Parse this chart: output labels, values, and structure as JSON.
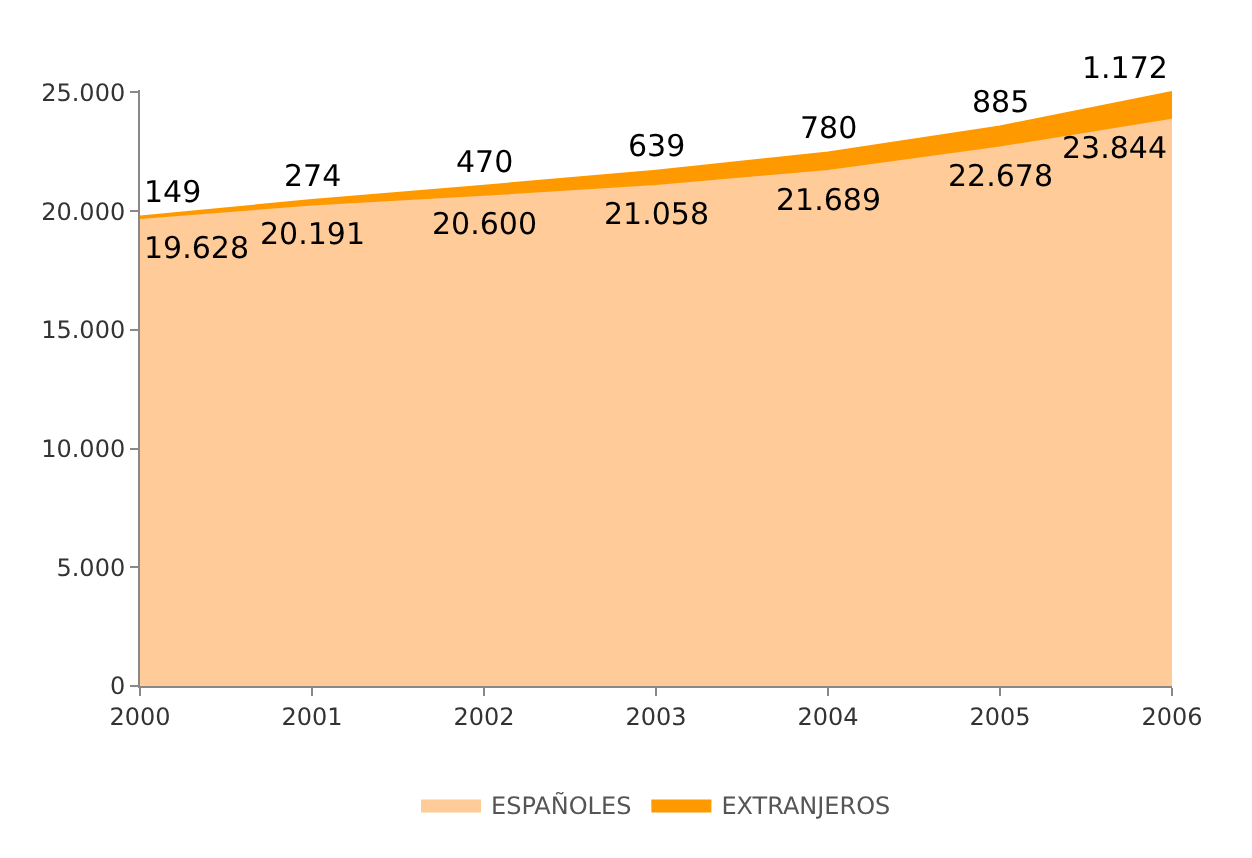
{
  "chart_data": {
    "type": "area",
    "stacked": true,
    "x": [
      2000,
      2001,
      2002,
      2003,
      2004,
      2005,
      2006
    ],
    "series": [
      {
        "name": "ESPAÑOLES",
        "color": "#ffcc99",
        "values": [
          19628,
          20191,
          20600,
          21058,
          21689,
          22678,
          23844
        ],
        "value_labels": [
          "19.628",
          "20.191",
          "20.600",
          "21.058",
          "21.689",
          "22.678",
          "23.844"
        ]
      },
      {
        "name": "EXTRANJEROS",
        "color": "#ff9900",
        "values": [
          149,
          274,
          470,
          639,
          780,
          885,
          1172
        ],
        "value_labels": [
          "149",
          "274",
          "470",
          "639",
          "780",
          "885",
          "1.172"
        ]
      }
    ],
    "xlim": [
      2000,
      2006
    ],
    "xticks": [
      2000,
      2001,
      2002,
      2003,
      2004,
      2005,
      2006
    ],
    "ylim": [
      0,
      25100
    ],
    "yticks": [
      {
        "value": 0,
        "label": "0"
      },
      {
        "value": 5000,
        "label": "5.000"
      },
      {
        "value": 10000,
        "label": "10.000"
      },
      {
        "value": 15000,
        "label": "15.000"
      },
      {
        "value": 20000,
        "label": "20.000"
      },
      {
        "value": 25000,
        "label": "25.000"
      }
    ],
    "legend": "bottom"
  }
}
